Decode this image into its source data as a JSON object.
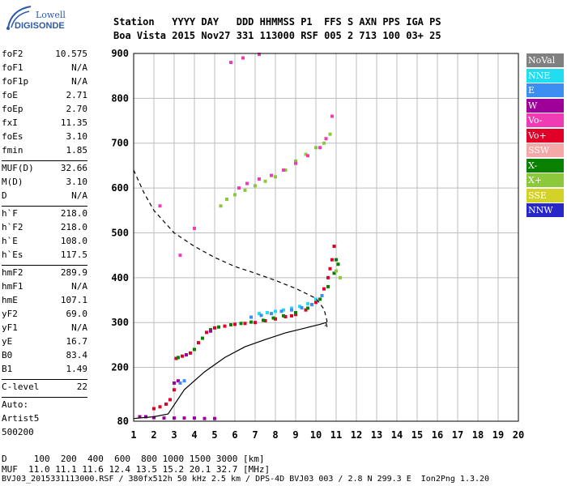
{
  "logo": {
    "lowell": "Lowell",
    "digisonde": "DIGISONDE"
  },
  "header": {
    "line1": "Station   YYYY DAY   DDD HHMMSS P1  FFS S AXN PPS IGA PS",
    "line2": "Boa Vista 2015 Nov27 331 113000 RSF 005 2 713 100 03+ 25"
  },
  "params": {
    "group1": [
      {
        "k": "foF2",
        "v": "10.575"
      },
      {
        "k": "foF1",
        "v": "N/A"
      },
      {
        "k": "foF1p",
        "v": "N/A"
      },
      {
        "k": "foE",
        "v": "2.71"
      },
      {
        "k": "foEp",
        "v": "2.70"
      },
      {
        "k": "fxI",
        "v": "11.35"
      },
      {
        "k": "foEs",
        "v": "3.10"
      },
      {
        "k": "fmin",
        "v": "1.85"
      }
    ],
    "group2": [
      {
        "k": "MUF(D)",
        "v": "32.66"
      },
      {
        "k": "M(D)",
        "v": "3.10"
      },
      {
        "k": "D",
        "v": "N/A"
      }
    ],
    "group3": [
      {
        "k": "h`F",
        "v": "218.0"
      },
      {
        "k": "h`F2",
        "v": "218.0"
      },
      {
        "k": "h`E",
        "v": "108.0"
      },
      {
        "k": "h`Es",
        "v": "117.5"
      }
    ],
    "group4": [
      {
        "k": "hmF2",
        "v": "289.9"
      },
      {
        "k": "hmF1",
        "v": "N/A"
      },
      {
        "k": "hmE",
        "v": "107.1"
      },
      {
        "k": "yF2",
        "v": "69.0"
      },
      {
        "k": "yF1",
        "v": "N/A"
      },
      {
        "k": "yE",
        "v": "16.7"
      },
      {
        "k": "B0",
        "v": "83.4"
      },
      {
        "k": "B1",
        "v": "1.49"
      }
    ],
    "group5": [
      {
        "k": "C-level",
        "v": "22"
      }
    ],
    "auto": [
      "Auto:",
      "Artist5",
      "500200"
    ]
  },
  "footer": {
    "d_line": "D     100  200  400  600  800 1000 1500 3000 [km]",
    "muf_line": "MUF  11.0 11.1 11.6 12.4 13.5 15.2 20.1 32.7 [MHz]",
    "file_line": "BVJ03_2015331113000.RSF / 380fx512h 50 kHz 2.5 km / DPS-4D BVJ03 003 / 2.8 N 299.3 E  Ion2Png 1.3.20"
  },
  "legend": [
    {
      "label": "NoVal",
      "color": "#808080"
    },
    {
      "label": "NNE",
      "color": "#22ddf0"
    },
    {
      "label": "E",
      "color": "#3c8ef0"
    },
    {
      "label": "W",
      "color": "#a0009a"
    },
    {
      "label": "Vo-",
      "color": "#f03cb4"
    },
    {
      "label": "Vo+",
      "color": "#e00028"
    },
    {
      "label": "SSW",
      "color": "#f5a8a8"
    },
    {
      "label": "X-",
      "color": "#0a8000"
    },
    {
      "label": "X+",
      "color": "#8cc83c"
    },
    {
      "label": "SSE",
      "color": "#d2d228"
    },
    {
      "label": "NNW",
      "color": "#2828c8"
    }
  ],
  "chart_data": {
    "type": "scatter",
    "xlim": [
      1,
      20
    ],
    "ylim": [
      80,
      900
    ],
    "x_ticks": [
      1,
      2,
      3,
      4,
      5,
      6,
      7,
      8,
      9,
      10,
      11,
      12,
      13,
      14,
      15,
      16,
      17,
      18,
      19,
      20
    ],
    "y_ticks": [
      80,
      200,
      300,
      400,
      500,
      600,
      700,
      800,
      900
    ],
    "grid": true,
    "series": [
      {
        "name": "Vo+",
        "color": "#e00028",
        "points": [
          [
            2.0,
            108
          ],
          [
            2.3,
            112
          ],
          [
            2.6,
            118
          ],
          [
            2.8,
            128
          ],
          [
            3.0,
            150
          ],
          [
            3.1,
            220
          ],
          [
            3.4,
            225
          ],
          [
            3.8,
            232
          ],
          [
            4.2,
            255
          ],
          [
            4.6,
            278
          ],
          [
            5.0,
            288
          ],
          [
            5.5,
            292
          ],
          [
            6.0,
            296
          ],
          [
            6.5,
            298
          ],
          [
            7.0,
            300
          ],
          [
            7.5,
            304
          ],
          [
            8.0,
            308
          ],
          [
            8.5,
            313
          ],
          [
            9.0,
            318
          ],
          [
            9.5,
            328
          ],
          [
            10.0,
            345
          ],
          [
            10.4,
            375
          ],
          [
            10.6,
            400
          ],
          [
            10.8,
            440
          ],
          [
            10.9,
            470
          ],
          [
            10.7,
            420
          ],
          [
            9.8,
            340
          ],
          [
            8.8,
            315
          ]
        ]
      },
      {
        "name": "X-",
        "color": "#0a8000",
        "points": [
          [
            3.2,
            222
          ],
          [
            3.6,
            228
          ],
          [
            4.0,
            240
          ],
          [
            4.4,
            265
          ],
          [
            4.8,
            284
          ],
          [
            5.2,
            290
          ],
          [
            5.8,
            295
          ],
          [
            6.3,
            298
          ],
          [
            6.8,
            301
          ],
          [
            7.4,
            305
          ],
          [
            7.9,
            310
          ],
          [
            8.4,
            315
          ],
          [
            9.0,
            322
          ],
          [
            9.6,
            332
          ],
          [
            10.2,
            352
          ],
          [
            10.6,
            380
          ],
          [
            10.9,
            410
          ],
          [
            11.0,
            440
          ],
          [
            11.1,
            430
          ]
        ]
      },
      {
        "name": "X+",
        "color": "#8cc83c",
        "points": [
          [
            5.3,
            560
          ],
          [
            5.6,
            575
          ],
          [
            6.0,
            585
          ],
          [
            6.5,
            595
          ],
          [
            7.0,
            605
          ],
          [
            7.5,
            615
          ],
          [
            8.0,
            625
          ],
          [
            8.5,
            640
          ],
          [
            9.0,
            660
          ],
          [
            9.5,
            675
          ],
          [
            10.0,
            690
          ],
          [
            10.4,
            700
          ],
          [
            10.7,
            720
          ],
          [
            11.0,
            415
          ],
          [
            11.2,
            400
          ]
        ]
      },
      {
        "name": "W",
        "color": "#a0009a",
        "points": [
          [
            1.3,
            90
          ],
          [
            1.6,
            90
          ],
          [
            2.0,
            88
          ],
          [
            2.5,
            87
          ],
          [
            3.0,
            87
          ],
          [
            3.5,
            87
          ],
          [
            4.0,
            87
          ],
          [
            4.5,
            86
          ],
          [
            5.0,
            86
          ],
          [
            3.0,
            165
          ],
          [
            3.2,
            170
          ],
          [
            3.6,
            228
          ],
          [
            4.8,
            281
          ]
        ]
      },
      {
        "name": "NNE",
        "color": "#22ddf0",
        "points": [
          [
            7.2,
            320
          ],
          [
            7.6,
            322
          ],
          [
            8.0,
            325
          ],
          [
            8.4,
            328
          ],
          [
            8.8,
            332
          ],
          [
            9.2,
            336
          ],
          [
            9.6,
            342
          ],
          [
            10.0,
            352
          ]
        ]
      },
      {
        "name": "E",
        "color": "#3c8ef0",
        "points": [
          [
            6.8,
            312
          ],
          [
            7.3,
            316
          ],
          [
            7.8,
            320
          ],
          [
            8.3,
            325
          ],
          [
            8.8,
            328
          ],
          [
            9.3,
            333
          ],
          [
            9.8,
            340
          ],
          [
            10.3,
            360
          ],
          [
            3.5,
            170
          ],
          [
            3.3,
            165
          ]
        ]
      },
      {
        "name": "Vo-",
        "color": "#f03cb4",
        "points": [
          [
            6.2,
            600
          ],
          [
            6.6,
            610
          ],
          [
            7.2,
            620
          ],
          [
            7.8,
            628
          ],
          [
            8.4,
            640
          ],
          [
            9.0,
            655
          ],
          [
            9.6,
            672
          ],
          [
            10.2,
            690
          ],
          [
            10.5,
            710
          ],
          [
            10.8,
            760
          ],
          [
            5.8,
            880
          ],
          [
            6.4,
            890
          ],
          [
            7.2,
            898
          ],
          [
            3.3,
            450
          ],
          [
            4.0,
            510
          ],
          [
            2.3,
            560
          ]
        ]
      }
    ],
    "virtual_height_profile": [
      [
        1.0,
        640
      ],
      [
        1.5,
        590
      ],
      [
        2.0,
        550
      ],
      [
        2.5,
        525
      ],
      [
        3.0,
        500
      ],
      [
        4.0,
        470
      ],
      [
        5.0,
        445
      ],
      [
        6.0,
        425
      ],
      [
        7.0,
        410
      ],
      [
        8.0,
        394
      ],
      [
        9.0,
        376
      ],
      [
        10.0,
        354
      ],
      [
        10.4,
        330
      ],
      [
        10.55,
        303
      ],
      [
        10.45,
        292
      ]
    ],
    "true_height_profile": [
      [
        1.0,
        86
      ],
      [
        2.0,
        90
      ],
      [
        2.7,
        96
      ],
      [
        3.5,
        150
      ],
      [
        4.5,
        190
      ],
      [
        5.5,
        222
      ],
      [
        6.5,
        246
      ],
      [
        7.5,
        262
      ],
      [
        8.5,
        277
      ],
      [
        9.5,
        288
      ],
      [
        10.2,
        296
      ],
      [
        10.5,
        300
      ],
      [
        10.55,
        290
      ]
    ]
  }
}
